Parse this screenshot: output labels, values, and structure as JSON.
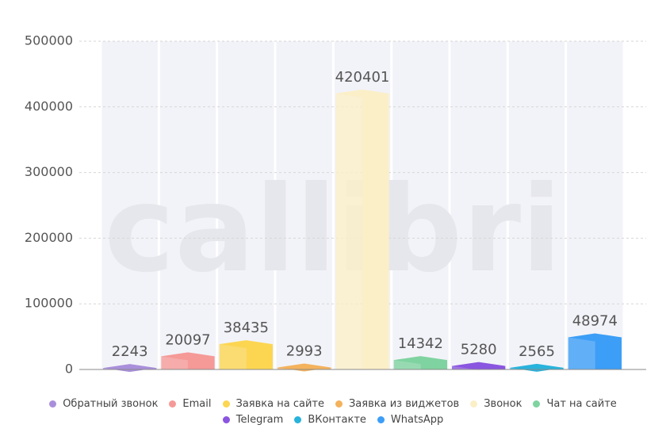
{
  "chart_data": {
    "type": "bar",
    "watermark": "callibri",
    "categories": [
      "Обратный звонок",
      "Email",
      "Заявка на сайте",
      "Заявка из виджетов",
      "Звонок",
      "Чат на сайте",
      "Telegram",
      "ВКонтакте",
      "WhatsApp"
    ],
    "values": [
      2243,
      20097,
      38435,
      2993,
      420401,
      14342,
      5280,
      2565,
      48974
    ],
    "colors": [
      "#a98fdb",
      "#f59a97",
      "#fcd651",
      "#f4b25d",
      "#fbefc8",
      "#7fd3a0",
      "#8a55e0",
      "#28b3dc",
      "#3c9ef6"
    ],
    "ylim": [
      0,
      500000
    ],
    "yticks": [
      0,
      100000,
      200000,
      300000,
      400000,
      500000
    ],
    "grid": true,
    "legend": "bottom"
  }
}
